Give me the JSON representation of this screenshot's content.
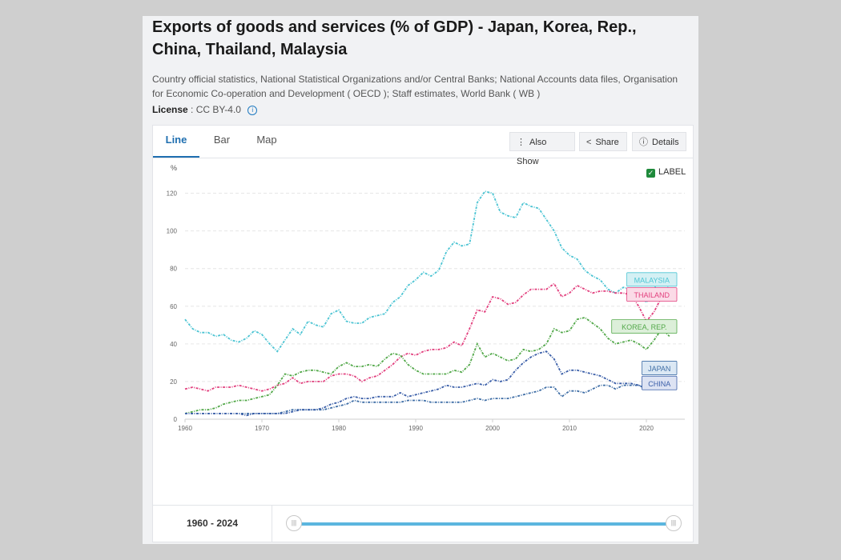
{
  "header": {
    "title": "Exports of goods and services (% of GDP) - Japan, Korea, Rep., China, Thailand, Malaysia",
    "source": "Country official statistics, National Statistical Organizations and/or Central Banks; National Accounts data files, Organisation for Economic Co-operation and Development ( OECD ); Staff estimates, World Bank ( WB )",
    "license_label": "License",
    "license_value": ": CC BY-4.0"
  },
  "tabs": [
    {
      "label": "Line",
      "active": true
    },
    {
      "label": "Bar",
      "active": false
    },
    {
      "label": "Map",
      "active": false
    }
  ],
  "toolbar": {
    "also_show": "Also Show",
    "share": "Share",
    "details": "Details"
  },
  "legend_toggle": {
    "label": "LABEL",
    "checked": true
  },
  "range": {
    "start": "1960",
    "sep": " - ",
    "end": "2024"
  },
  "chart_data": {
    "type": "line",
    "ylabel": "%",
    "ylim": [
      0,
      130
    ],
    "yticks": [
      0,
      20,
      40,
      60,
      80,
      100,
      120
    ],
    "xlim": [
      1960,
      2025
    ],
    "xticks": [
      1960,
      1970,
      1980,
      1990,
      2000,
      2010,
      2020
    ],
    "grid": true,
    "series": [
      {
        "name": "MALAYSIA",
        "color": "#4cc4d3",
        "label_bg": "#d4f0f4",
        "x": [
          1960,
          1961,
          1962,
          1963,
          1964,
          1965,
          1966,
          1967,
          1968,
          1969,
          1970,
          1971,
          1972,
          1973,
          1974,
          1975,
          1976,
          1977,
          1978,
          1979,
          1980,
          1981,
          1982,
          1983,
          1984,
          1985,
          1986,
          1987,
          1988,
          1989,
          1990,
          1991,
          1992,
          1993,
          1994,
          1995,
          1996,
          1997,
          1998,
          1999,
          2000,
          2001,
          2002,
          2003,
          2004,
          2005,
          2006,
          2007,
          2008,
          2009,
          2010,
          2011,
          2012,
          2013,
          2014,
          2015,
          2016,
          2017,
          2018,
          2019,
          2020,
          2021,
          2022,
          2023
        ],
        "values": [
          53,
          48,
          46,
          46,
          44,
          45,
          42,
          41,
          43,
          47,
          45,
          40,
          36,
          42,
          48,
          45,
          52,
          50,
          49,
          56,
          58,
          52,
          51,
          51,
          54,
          55,
          56,
          62,
          65,
          71,
          74,
          78,
          76,
          79,
          89,
          94,
          92,
          93,
          115,
          121,
          120,
          110,
          108,
          107,
          115,
          113,
          112,
          106,
          100,
          91,
          87,
          85,
          79,
          76,
          74,
          69,
          67,
          70,
          69,
          68,
          62,
          69,
          77,
          69
        ]
      },
      {
        "name": "THAILAND",
        "color": "#e2407e",
        "label_bg": "#fbdbe7",
        "x": [
          1960,
          1961,
          1962,
          1963,
          1964,
          1965,
          1966,
          1967,
          1968,
          1969,
          1970,
          1971,
          1972,
          1973,
          1974,
          1975,
          1976,
          1977,
          1978,
          1979,
          1980,
          1981,
          1982,
          1983,
          1984,
          1985,
          1986,
          1987,
          1988,
          1989,
          1990,
          1991,
          1992,
          1993,
          1994,
          1995,
          1996,
          1997,
          1998,
          1999,
          2000,
          2001,
          2002,
          2003,
          2004,
          2005,
          2006,
          2007,
          2008,
          2009,
          2010,
          2011,
          2012,
          2013,
          2014,
          2015,
          2016,
          2017,
          2018,
          2019,
          2020,
          2021,
          2022,
          2023
        ],
        "values": [
          16,
          17,
          16,
          15,
          17,
          17,
          17,
          18,
          17,
          16,
          15,
          16,
          18,
          19,
          22,
          19,
          20,
          20,
          20,
          23,
          24,
          24,
          23,
          20,
          22,
          23,
          26,
          29,
          33,
          35,
          34,
          36,
          37,
          37,
          38,
          41,
          39,
          48,
          58,
          57,
          65,
          64,
          61,
          62,
          66,
          69,
          69,
          69,
          72,
          65,
          67,
          71,
          69,
          67,
          68,
          68,
          67,
          67,
          66,
          60,
          52,
          57,
          65,
          65
        ]
      },
      {
        "name": "KOREA, REP.",
        "color": "#52a849",
        "label_bg": "#dcefd9",
        "x": [
          1960,
          1961,
          1962,
          1963,
          1964,
          1965,
          1966,
          1967,
          1968,
          1969,
          1970,
          1971,
          1972,
          1973,
          1974,
          1975,
          1976,
          1977,
          1978,
          1979,
          1980,
          1981,
          1982,
          1983,
          1984,
          1985,
          1986,
          1987,
          1988,
          1989,
          1990,
          1991,
          1992,
          1993,
          1994,
          1995,
          1996,
          1997,
          1998,
          1999,
          2000,
          2001,
          2002,
          2003,
          2004,
          2005,
          2006,
          2007,
          2008,
          2009,
          2010,
          2011,
          2012,
          2013,
          2014,
          2015,
          2016,
          2017,
          2018,
          2019,
          2020,
          2021,
          2022,
          2023
        ],
        "values": [
          3,
          4,
          5,
          5,
          6,
          8,
          9,
          10,
          10,
          11,
          12,
          13,
          18,
          24,
          23,
          25,
          26,
          26,
          25,
          24,
          28,
          30,
          28,
          28,
          29,
          28,
          32,
          35,
          34,
          29,
          26,
          24,
          24,
          24,
          24,
          26,
          25,
          29,
          40,
          33,
          35,
          33,
          31,
          32,
          37,
          36,
          37,
          40,
          48,
          46,
          47,
          53,
          54,
          51,
          48,
          43,
          40,
          41,
          42,
          40,
          37,
          42,
          48,
          44
        ]
      },
      {
        "name": "JAPAN",
        "color": "#3f6ea6",
        "label_bg": "#dbe8f4",
        "x": [
          1960,
          1961,
          1962,
          1963,
          1964,
          1965,
          1966,
          1967,
          1968,
          1969,
          1970,
          1971,
          1972,
          1973,
          1974,
          1975,
          1976,
          1977,
          1978,
          1979,
          1980,
          1981,
          1982,
          1983,
          1984,
          1985,
          1986,
          1987,
          1988,
          1989,
          1990,
          1991,
          1992,
          1993,
          1994,
          1995,
          1996,
          1997,
          1998,
          1999,
          2000,
          2001,
          2002,
          2003,
          2004,
          2005,
          2006,
          2007,
          2008,
          2009,
          2010,
          2011,
          2012,
          2013,
          2014,
          2015,
          2016,
          2017,
          2018,
          2019,
          2020,
          2021,
          2022,
          2023
        ],
        "values": [
          3,
          3,
          3,
          3,
          3,
          3,
          3,
          3,
          3,
          3,
          3,
          3,
          3,
          4,
          5,
          5,
          5,
          5,
          5,
          6,
          7,
          8,
          10,
          9,
          9,
          9,
          9,
          9,
          9,
          10,
          10,
          10,
          9,
          9,
          9,
          9,
          9,
          10,
          11,
          10,
          11,
          11,
          11,
          12,
          13,
          14,
          15,
          17,
          17,
          12,
          15,
          15,
          14,
          16,
          18,
          18,
          16,
          18,
          18,
          18,
          16,
          18,
          22,
          22
        ]
      },
      {
        "name": "CHINA",
        "color": "#3a5ea8",
        "label_bg": "#dde3f3",
        "x": [
          1960,
          1961,
          1962,
          1963,
          1964,
          1965,
          1966,
          1967,
          1968,
          1969,
          1970,
          1971,
          1972,
          1973,
          1974,
          1975,
          1976,
          1977,
          1978,
          1979,
          1980,
          1981,
          1982,
          1983,
          1984,
          1985,
          1986,
          1987,
          1988,
          1989,
          1990,
          1991,
          1992,
          1993,
          1994,
          1995,
          1996,
          1997,
          1998,
          1999,
          2000,
          2001,
          2002,
          2003,
          2004,
          2005,
          2006,
          2007,
          2008,
          2009,
          2010,
          2011,
          2012,
          2013,
          2014,
          2015,
          2016,
          2017,
          2018,
          2019,
          2020,
          2021,
          2022,
          2023
        ],
        "values": [
          3,
          3,
          3,
          3,
          3,
          3,
          3,
          3,
          2,
          3,
          3,
          3,
          3,
          3,
          4,
          5,
          5,
          5,
          6,
          8,
          9,
          11,
          12,
          11,
          11,
          12,
          12,
          12,
          14,
          12,
          13,
          14,
          15,
          16,
          18,
          17,
          17,
          18,
          19,
          18,
          21,
          20,
          21,
          26,
          30,
          33,
          35,
          36,
          32,
          24,
          26,
          26,
          25,
          24,
          23,
          21,
          19,
          19,
          19,
          18,
          17,
          20,
          21,
          19
        ]
      }
    ],
    "labels": [
      {
        "series": 0,
        "text": "MALAYSIA"
      },
      {
        "series": 1,
        "text": "THAILAND"
      },
      {
        "series": 2,
        "text": "KOREA, REP."
      },
      {
        "series": 3,
        "text": "JAPAN"
      },
      {
        "series": 4,
        "text": "CHINA"
      }
    ]
  }
}
